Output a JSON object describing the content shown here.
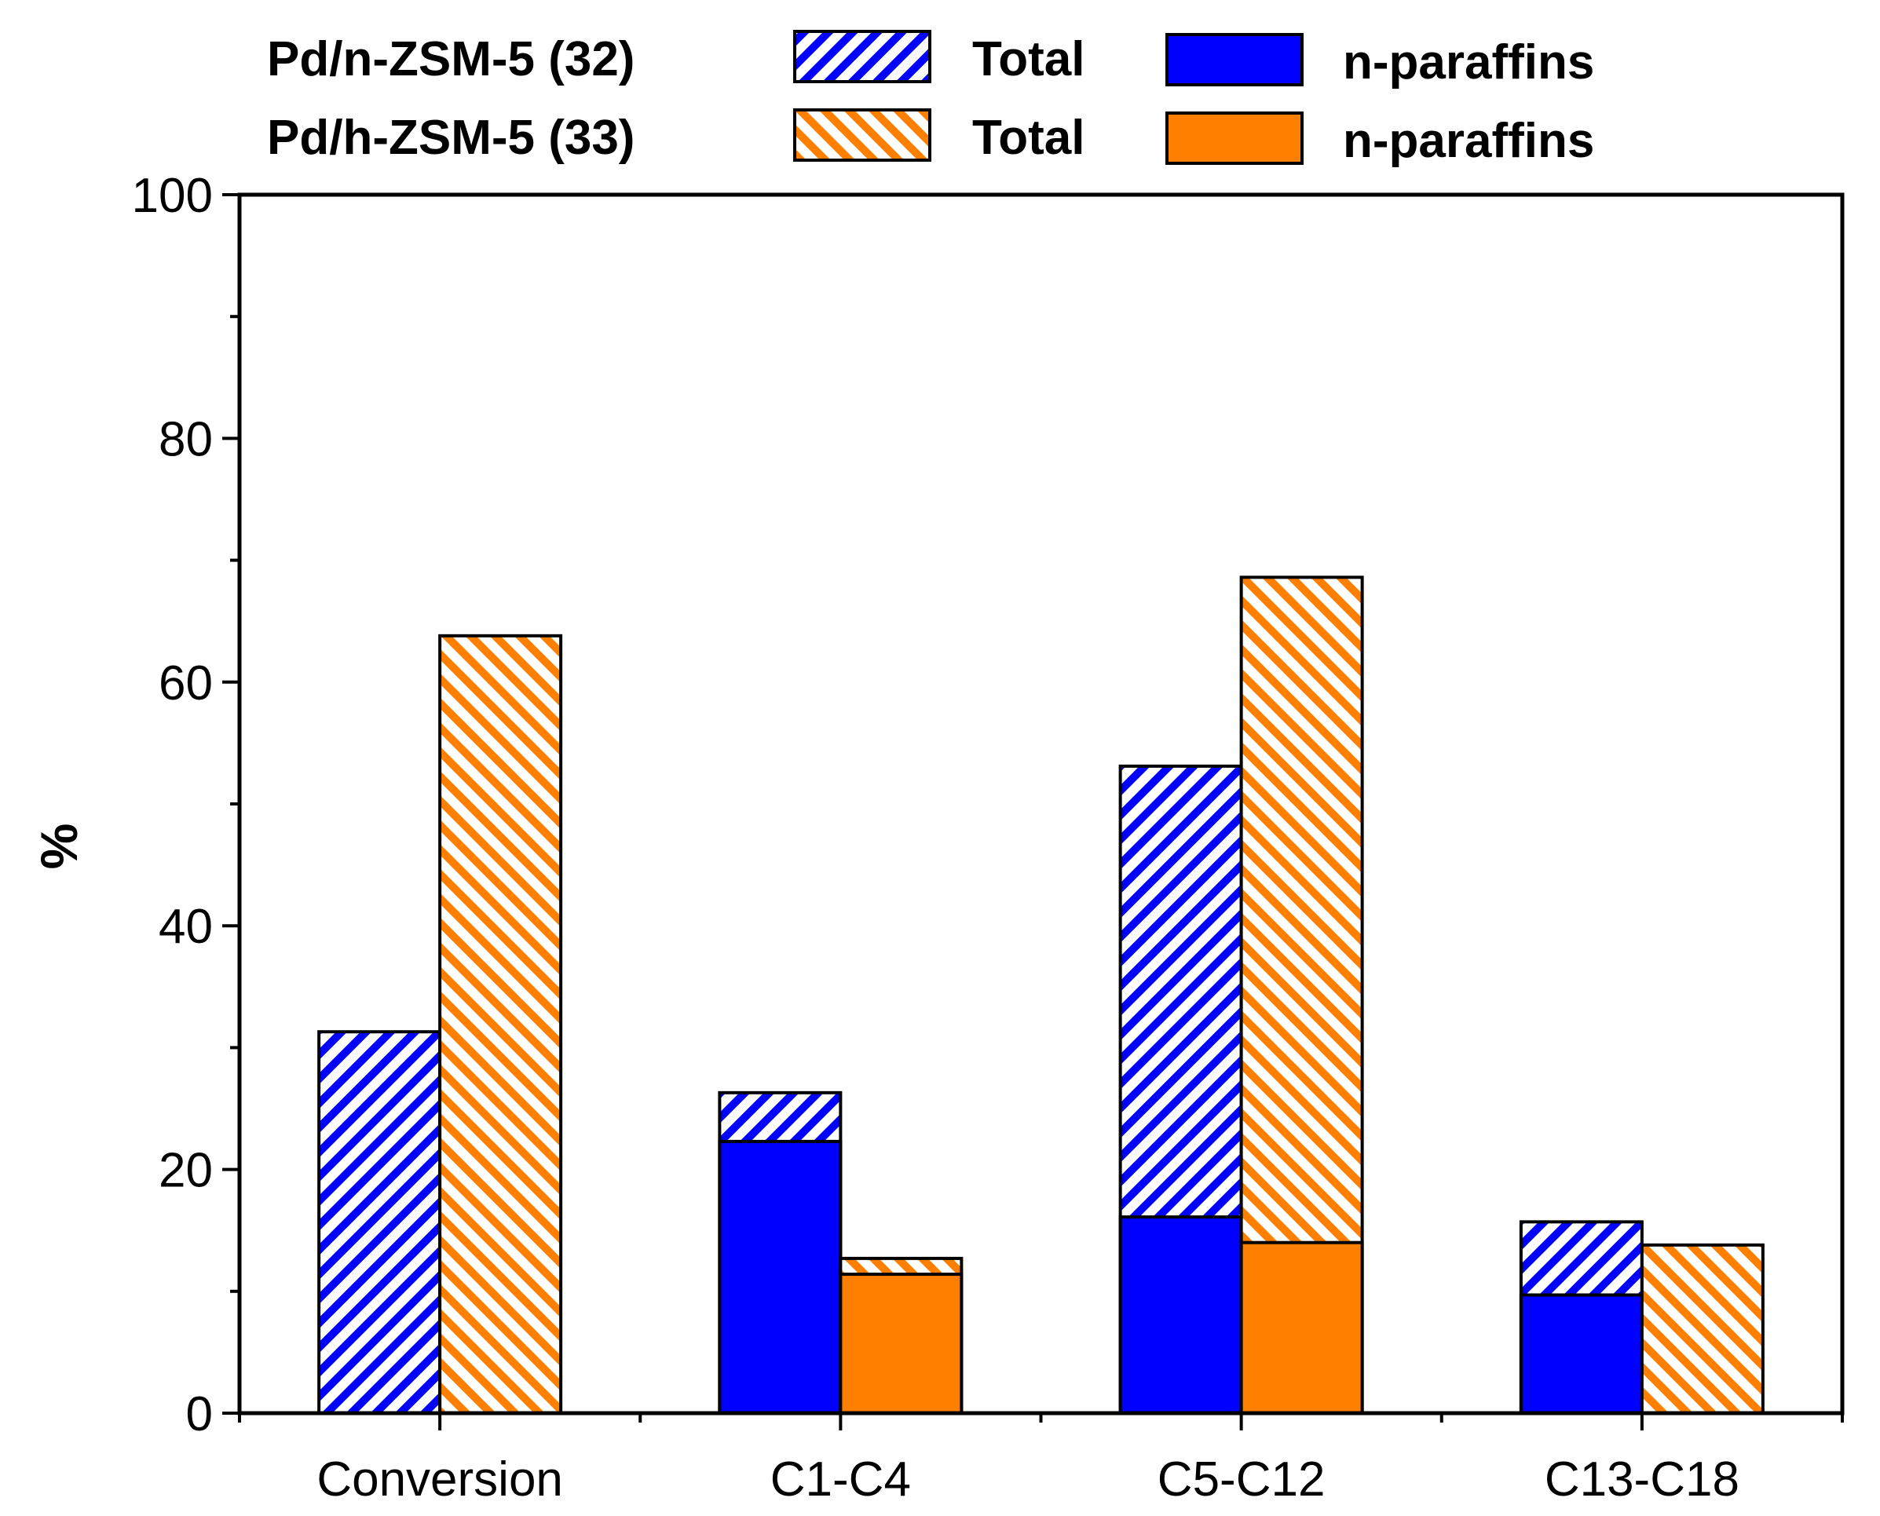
{
  "colors": {
    "blue": "#0000ff",
    "orange": "#ff8000",
    "axis": "#000000",
    "background": "#ffffff"
  },
  "legend": {
    "series_a_name": "Pd/n-ZSM-5 (32)",
    "series_b_name": "Pd/h-ZSM-5 (33)",
    "total_label_a": "Total",
    "total_label_b": "Total",
    "nparaffins_label_a": "n-paraffins",
    "nparaffins_label_b": "n-paraffins"
  },
  "chart_data": {
    "type": "bar",
    "stacking": "overlaid (n-paraffins drawn over total)",
    "title": "",
    "xlabel": "",
    "ylabel": "%",
    "ylim": [
      0,
      100
    ],
    "yticks": [
      0,
      20,
      40,
      60,
      80,
      100
    ],
    "yminor_step": 10,
    "grid": false,
    "legend_position": "top, above plot",
    "categories": [
      "Conversion",
      "C1-C4",
      "C5-C12",
      "C13-C18"
    ],
    "series": [
      {
        "name": "Pd/n-ZSM-5 (32)",
        "color_key": "blue",
        "total": [
          31.3,
          26.3,
          53.1,
          15.7
        ],
        "n_paraffins": [
          null,
          22.3,
          16.1,
          9.7
        ]
      },
      {
        "name": "Pd/h-ZSM-5 (33)",
        "color_key": "orange",
        "total": [
          63.8,
          12.7,
          68.6,
          13.8
        ],
        "n_paraffins": [
          null,
          11.4,
          14.0,
          null
        ]
      }
    ]
  }
}
